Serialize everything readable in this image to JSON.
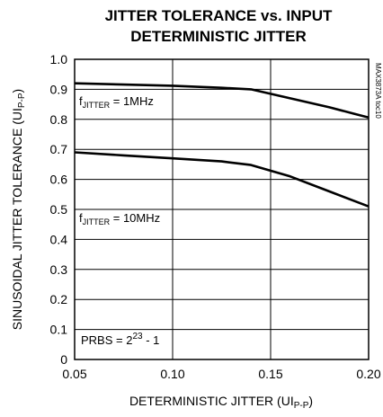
{
  "chart_data": {
    "type": "line",
    "title_line1": "JITTER TOLERANCE vs. INPUT",
    "title_line2": "DETERMINISTIC JITTER",
    "xlabel": {
      "main": "DETERMINISTIC JITTER (UI",
      "sub": "P-P",
      "close": ")"
    },
    "ylabel": {
      "main": "SINUSOIDAL JITTER TOLERANCE (UI",
      "sub": "P-P",
      "close": ")"
    },
    "x_ticks": [
      "0.05",
      "0.10",
      "0.15",
      "0.20"
    ],
    "y_ticks": [
      "0",
      "0.1",
      "0.2",
      "0.3",
      "0.4",
      "0.5",
      "0.6",
      "0.7",
      "0.8",
      "0.9",
      "1.0"
    ],
    "xlim": [
      0.05,
      0.2
    ],
    "ylim": [
      0,
      1.0
    ],
    "grid": true,
    "series": [
      {
        "name": "f_JITTER = 1MHz",
        "x": [
          0.05,
          0.075,
          0.1,
          0.125,
          0.14,
          0.16,
          0.18,
          0.2
        ],
        "y": [
          0.92,
          0.916,
          0.912,
          0.905,
          0.9,
          0.87,
          0.84,
          0.806
        ]
      },
      {
        "name": "f_JITTER = 10MHz",
        "x": [
          0.05,
          0.075,
          0.1,
          0.125,
          0.14,
          0.16,
          0.18,
          0.2
        ],
        "y": [
          0.69,
          0.68,
          0.67,
          0.66,
          0.648,
          0.61,
          0.56,
          0.51
        ]
      }
    ],
    "annotations": [
      {
        "pre": "f",
        "sub": "JITTER",
        "post": " = 1MHz"
      },
      {
        "pre": "f",
        "sub": "JITTER",
        "post": " = 10MHz"
      },
      {
        "pre": "PRBS = 2",
        "sup": "23",
        "post": " - 1"
      }
    ],
    "watermark": "MAX3873A toc10",
    "line_color": "#000000",
    "grid_color": "#000000"
  }
}
